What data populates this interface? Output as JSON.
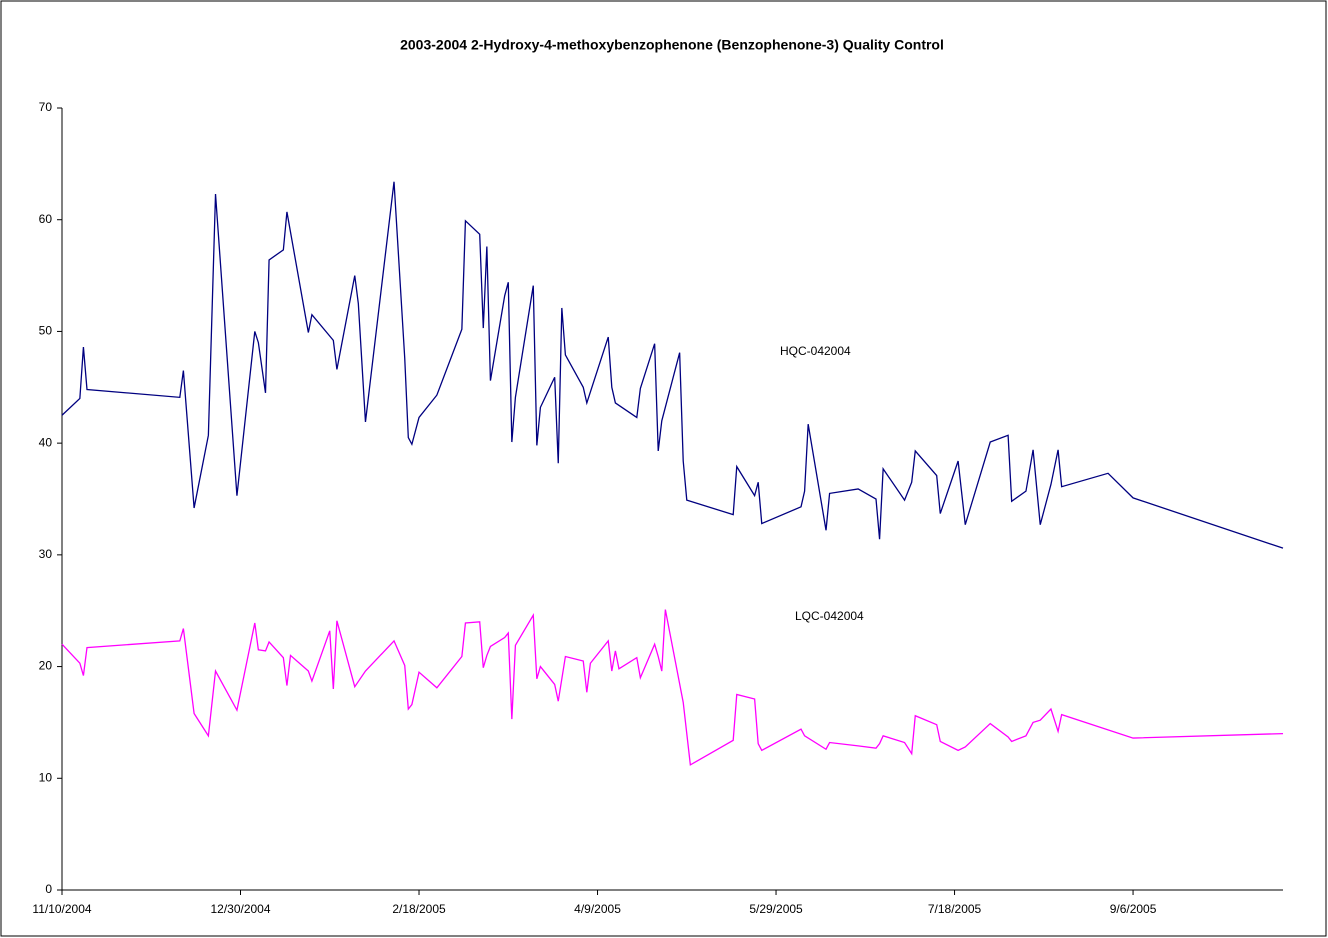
{
  "chart_data": {
    "type": "line",
    "title": "2003-2004 2-Hydroxy-4-methoxybenzophenone (Benzophenone-3) Quality Control",
    "xlim": [
      "2004-11-10",
      "2005-10-18"
    ],
    "xticks": [
      {
        "value": "2004-11-10",
        "label": "11/10/2004"
      },
      {
        "value": "2004-12-30",
        "label": "12/30/2004"
      },
      {
        "value": "2005-02-18",
        "label": "2/18/2005"
      },
      {
        "value": "2005-04-09",
        "label": "4/9/2005"
      },
      {
        "value": "2005-05-29",
        "label": "5/29/2005"
      },
      {
        "value": "2005-07-18",
        "label": "7/18/2005"
      },
      {
        "value": "2005-09-06",
        "label": "9/6/2005"
      }
    ],
    "ylim": [
      0,
      70
    ],
    "yticks": [
      0,
      10,
      20,
      30,
      40,
      50,
      60,
      70
    ],
    "grid": false,
    "series": [
      {
        "name": "HQC-042004",
        "color": "#000080",
        "x": [
          "2004-11-10",
          "2004-11-15",
          "2004-11-16",
          "2004-11-17",
          "2004-12-13",
          "2004-12-14",
          "2004-12-17",
          "2004-12-21",
          "2004-12-23",
          "2004-12-29",
          "2005-01-03",
          "2005-01-04",
          "2005-01-06",
          "2005-01-07",
          "2005-01-11",
          "2005-01-12",
          "2005-01-18",
          "2005-01-19",
          "2005-01-25",
          "2005-01-26",
          "2005-01-31",
          "2005-02-01",
          "2005-02-03",
          "2005-02-11",
          "2005-02-14",
          "2005-02-15",
          "2005-02-16",
          "2005-02-18",
          "2005-02-23",
          "2005-03-02",
          "2005-03-03",
          "2005-03-07",
          "2005-03-08",
          "2005-03-09",
          "2005-03-10",
          "2005-03-14",
          "2005-03-15",
          "2005-03-16",
          "2005-03-17",
          "2005-03-22",
          "2005-03-23",
          "2005-03-24",
          "2005-03-28",
          "2005-03-29",
          "2005-03-30",
          "2005-03-31",
          "2005-04-05",
          "2005-04-06",
          "2005-04-12",
          "2005-04-13",
          "2005-04-14",
          "2005-04-20",
          "2005-04-21",
          "2005-04-25",
          "2005-04-26",
          "2005-04-27",
          "2005-05-02",
          "2005-05-03",
          "2005-05-04",
          "2005-05-17",
          "2005-05-18",
          "2005-05-23",
          "2005-05-24",
          "2005-05-25",
          "2005-06-05",
          "2005-06-06",
          "2005-06-07",
          "2005-06-12",
          "2005-06-13",
          "2005-06-21",
          "2005-06-26",
          "2005-06-27",
          "2005-06-28",
          "2005-07-04",
          "2005-07-06",
          "2005-07-07",
          "2005-07-13",
          "2005-07-14",
          "2005-07-19",
          "2005-07-21",
          "2005-07-28",
          "2005-08-02",
          "2005-08-03",
          "2005-08-07",
          "2005-08-09",
          "2005-08-11",
          "2005-08-14",
          "2005-08-16",
          "2005-08-17",
          "2005-08-30",
          "2005-09-06",
          "2005-10-18"
        ],
        "values": [
          42.5,
          44,
          48.6,
          44.8,
          44.1,
          46.5,
          34.2,
          40.7,
          62.3,
          35.3,
          50,
          49,
          44.5,
          56.4,
          57.3,
          60.7,
          49.9,
          51.5,
          49.2,
          46.6,
          55,
          52.5,
          41.9,
          63.4,
          47.6,
          40.5,
          39.9,
          42.3,
          44.3,
          50.2,
          59.9,
          58.7,
          50.3,
          57.6,
          45.6,
          53.2,
          54.4,
          40.1,
          44.1,
          54.1,
          39.8,
          43.2,
          45.9,
          38.2,
          52.1,
          47.9,
          45,
          43.6,
          49.5,
          45,
          43.6,
          42.3,
          44.9,
          48.9,
          39.3,
          42,
          48.1,
          38.4,
          34.9,
          33.6,
          37.9,
          35.3,
          36.5,
          32.8,
          34.3,
          35.7,
          41.7,
          32.2,
          35.5,
          35.9,
          35,
          31.4,
          37.7,
          34.9,
          36.5,
          39.3,
          37.1,
          33.7,
          38.4,
          32.7,
          40.1,
          40.7,
          34.8,
          35.7,
          39.4,
          32.7,
          36.3,
          39.4,
          36.1,
          37.3,
          35.1,
          30.6
        ]
      },
      {
        "name": "LQC-042004",
        "color": "#ff00ff",
        "x": [
          "2004-11-10",
          "2004-11-15",
          "2004-11-16",
          "2004-11-17",
          "2004-12-13",
          "2004-12-14",
          "2004-12-17",
          "2004-12-21",
          "2004-12-23",
          "2004-12-29",
          "2005-01-03",
          "2005-01-04",
          "2005-01-06",
          "2005-01-07",
          "2005-01-11",
          "2005-01-12",
          "2005-01-13",
          "2005-01-18",
          "2005-01-19",
          "2005-01-24",
          "2005-01-25",
          "2005-01-26",
          "2005-01-31",
          "2005-02-03",
          "2005-02-11",
          "2005-02-14",
          "2005-02-15",
          "2005-02-16",
          "2005-02-18",
          "2005-02-23",
          "2005-03-02",
          "2005-03-03",
          "2005-03-07",
          "2005-03-08",
          "2005-03-09",
          "2005-03-10",
          "2005-03-14",
          "2005-03-15",
          "2005-03-16",
          "2005-03-17",
          "2005-03-22",
          "2005-03-23",
          "2005-03-24",
          "2005-03-28",
          "2005-03-29",
          "2005-03-31",
          "2005-04-05",
          "2005-04-06",
          "2005-04-07",
          "2005-04-12",
          "2005-04-13",
          "2005-04-14",
          "2005-04-15",
          "2005-04-20",
          "2005-04-21",
          "2005-04-25",
          "2005-04-26",
          "2005-04-27",
          "2005-04-28",
          "2005-05-03",
          "2005-05-05",
          "2005-05-17",
          "2005-05-18",
          "2005-05-23",
          "2005-05-24",
          "2005-05-25",
          "2005-06-05",
          "2005-06-06",
          "2005-06-12",
          "2005-06-13",
          "2005-06-21",
          "2005-06-26",
          "2005-06-27",
          "2005-06-28",
          "2005-07-04",
          "2005-07-06",
          "2005-07-07",
          "2005-07-13",
          "2005-07-14",
          "2005-07-19",
          "2005-07-21",
          "2005-07-28",
          "2005-08-02",
          "2005-08-03",
          "2005-08-07",
          "2005-08-09",
          "2005-08-11",
          "2005-08-14",
          "2005-08-16",
          "2005-08-17",
          "2005-09-06",
          "2005-10-18"
        ],
        "values": [
          22,
          20.3,
          19.2,
          21.7,
          22.3,
          23.4,
          15.8,
          13.8,
          19.6,
          16.1,
          23.9,
          21.5,
          21.4,
          22.2,
          20.8,
          18.3,
          21,
          19.6,
          18.7,
          23.2,
          18,
          24.1,
          18.2,
          19.6,
          22.3,
          20.1,
          16.2,
          16.6,
          19.5,
          18.1,
          20.9,
          23.9,
          24,
          19.9,
          21,
          21.8,
          22.6,
          23,
          15.3,
          21.9,
          24.6,
          18.9,
          20,
          18.4,
          16.9,
          20.9,
          20.5,
          17.7,
          20.3,
          22.3,
          19.6,
          21.4,
          19.8,
          20.8,
          19,
          22,
          20.9,
          19.6,
          25.1,
          16.8,
          11.2,
          13.4,
          17.5,
          17.1,
          13.1,
          12.5,
          14.4,
          13.8,
          12.6,
          13.2,
          12.9,
          12.7,
          13.1,
          13.8,
          13.2,
          12.2,
          15.6,
          14.8,
          13.3,
          12.5,
          12.8,
          14.9,
          13.7,
          13.3,
          13.8,
          15,
          15.2,
          16.2,
          14.2,
          15.7,
          13.6,
          14
        ]
      }
    ]
  }
}
